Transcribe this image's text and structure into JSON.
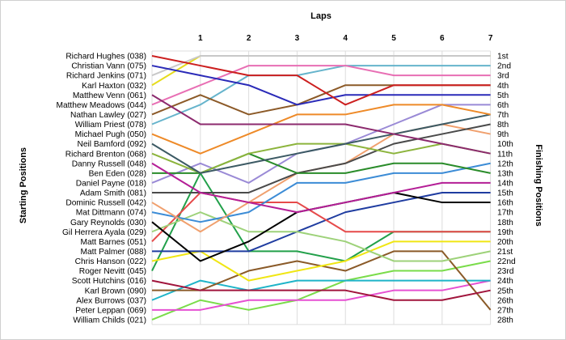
{
  "chart_data": {
    "type": "line",
    "subtype": "bump",
    "xlabel": "Laps",
    "ylabel_left": "Starting Positions",
    "ylabel_right": "Finishing Positions",
    "laps": [
      0,
      1,
      2,
      3,
      4,
      5,
      6,
      7
    ],
    "lap_tick_labels": [
      "1",
      "2",
      "3",
      "4",
      "5",
      "6",
      "7"
    ],
    "finish_labels": [
      "1st",
      "2nd",
      "3rd",
      "4th",
      "5th",
      "6th",
      "7th",
      "8th",
      "9th",
      "10th",
      "11th",
      "12th",
      "13th",
      "14th",
      "15th",
      "16th",
      "17th",
      "18th",
      "19th",
      "20th",
      "21st",
      "22nd",
      "23rd",
      "24th",
      "25th",
      "26th",
      "27th",
      "28th"
    ],
    "grid": true,
    "series": [
      {
        "name": "Richard Hughes (038)",
        "color": "#cc1f1f",
        "positions": [
          1,
          2,
          3,
          3,
          6,
          4,
          4,
          4
        ]
      },
      {
        "name": "Christian Vann (075)",
        "color": "#2a2ab8",
        "positions": [
          2,
          3,
          4,
          6,
          5,
          5,
          5,
          5
        ]
      },
      {
        "name": "Richard Jenkins (071)",
        "color": "#c8c8c8",
        "positions": [
          3,
          1,
          1,
          1,
          1,
          1,
          1,
          1
        ]
      },
      {
        "name": "Karl Haxton (032)",
        "color": "#e6dc1e",
        "positions": [
          4,
          1,
          1,
          1,
          1,
          1,
          1,
          1
        ]
      },
      {
        "name": "Matthew Venn (061)",
        "color": "#8c2a6e",
        "positions": [
          5,
          8,
          8,
          8,
          8,
          9,
          10,
          11
        ]
      },
      {
        "name": "Matthew Meadows (044)",
        "color": "#e86fb4",
        "positions": [
          6,
          4,
          2,
          2,
          2,
          3,
          3,
          3
        ]
      },
      {
        "name": "Nathan Lawley (027)",
        "color": "#8c5a28",
        "positions": [
          7,
          5,
          7,
          6,
          4,
          4,
          4,
          4
        ]
      },
      {
        "name": "William Priest (078)",
        "color": "#66b4cc",
        "positions": [
          8,
          6,
          3,
          3,
          2,
          2,
          2,
          2
        ]
      },
      {
        "name": "Michael Pugh (050)",
        "color": "#ee8a28",
        "positions": [
          9,
          11,
          9,
          7,
          7,
          6,
          6,
          7
        ]
      },
      {
        "name": "Neil Bamford (092)",
        "color": "#3c5a64",
        "positions": [
          10,
          13,
          12,
          11,
          10,
          9,
          8,
          7
        ]
      },
      {
        "name": "Richard Brenton (068)",
        "color": "#8cb43c",
        "positions": [
          11,
          13,
          11,
          10,
          10,
          11,
          10,
          11
        ]
      },
      {
        "name": "Danny Russell (048)",
        "color": "#b41e96",
        "positions": [
          12,
          15,
          16,
          17,
          16,
          15,
          14,
          14
        ]
      },
      {
        "name": "Ben Eden (028)",
        "color": "#2a8c2a",
        "positions": [
          13,
          13,
          11,
          13,
          13,
          12,
          12,
          13
        ]
      },
      {
        "name": "Daniel Payne (018)",
        "color": "#9a8ad6",
        "positions": [
          14,
          12,
          14,
          11,
          10,
          8,
          6,
          6
        ]
      },
      {
        "name": "Adam Smith (081)",
        "color": "#4a4a4a",
        "positions": [
          15,
          15,
          15,
          13,
          12,
          10,
          9,
          8
        ]
      },
      {
        "name": "Dominic Russell (042)",
        "color": "#f0a06e",
        "positions": [
          16,
          19,
          16,
          13,
          12,
          9,
          8,
          9
        ]
      },
      {
        "name": "Mat Dittmann (074)",
        "color": "#3c8cd6",
        "positions": [
          17,
          18,
          17,
          14,
          14,
          13,
          13,
          12
        ]
      },
      {
        "name": "Gary Reynolds (030)",
        "color": "#000000",
        "positions": [
          18,
          22,
          20,
          17,
          16,
          15,
          16,
          16
        ]
      },
      {
        "name": "Gil Herrera Ayala (029)",
        "color": "#9ed27a",
        "positions": [
          19,
          17,
          19,
          19,
          20,
          22,
          22,
          21
        ]
      },
      {
        "name": "Matt Barnes (051)",
        "color": "#e64a4a",
        "positions": [
          20,
          15,
          16,
          16,
          19,
          19,
          19,
          19
        ]
      },
      {
        "name": "Matt Palmer (088)",
        "color": "#1f3ca0",
        "positions": [
          21,
          21,
          21,
          19,
          17,
          16,
          15,
          15
        ]
      },
      {
        "name": "Chris Hanson (022)",
        "color": "#f0e614",
        "positions": [
          22,
          21,
          24,
          23,
          22,
          20,
          20,
          20
        ]
      },
      {
        "name": "Roger Nevitt (045)",
        "color": "#22a04a",
        "positions": [
          23,
          13,
          21,
          21,
          22,
          19,
          19,
          19
        ]
      },
      {
        "name": "Scott Hutchins (016)",
        "color": "#a0143c",
        "positions": [
          24,
          25,
          25,
          25,
          25,
          26,
          26,
          25
        ]
      },
      {
        "name": "Karl Brown (090)",
        "color": "#8a5a28",
        "positions": [
          25,
          25,
          23,
          22,
          23,
          21,
          21,
          27
        ]
      },
      {
        "name": "Alex Burrows (037)",
        "color": "#1eb4c8",
        "positions": [
          26,
          24,
          25,
          24,
          24,
          24,
          24,
          24
        ]
      },
      {
        "name": "Peter Leppan (069)",
        "color": "#e650d2",
        "positions": [
          27,
          27,
          26,
          26,
          26,
          25,
          25,
          24
        ]
      },
      {
        "name": "William Childs (021)",
        "color": "#7adc4a",
        "positions": [
          28,
          26,
          27,
          26,
          24,
          23,
          23,
          22
        ]
      }
    ]
  }
}
